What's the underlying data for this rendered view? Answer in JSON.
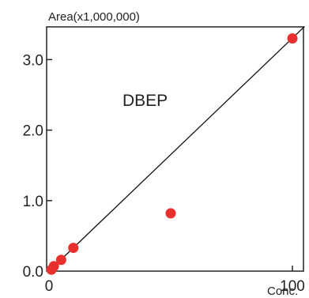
{
  "chart_data": {
    "type": "scatter",
    "title": "DBEP",
    "ylabel": "Area(x1,000,000)",
    "xlabel": "Conc.",
    "xlim": [
      0,
      105
    ],
    "ylim": [
      0,
      3.5
    ],
    "x_ticks": [
      0,
      100
    ],
    "x_tick_labels": [
      "0",
      "100"
    ],
    "y_ticks": [
      0,
      1,
      2,
      3
    ],
    "y_tick_labels": [
      "0.0",
      "1.0",
      "2.0",
      "3.0"
    ],
    "grid": false,
    "series": [
      {
        "x": [
          1,
          2,
          5,
          10,
          50,
          100
        ],
        "y": [
          0.02,
          0.07,
          0.16,
          0.33,
          0.82,
          3.3
        ],
        "color": "#e8302f"
      }
    ],
    "fit_line": {
      "x": [
        0,
        105
      ],
      "y": [
        0,
        3.47
      ],
      "color": "#111111"
    }
  }
}
